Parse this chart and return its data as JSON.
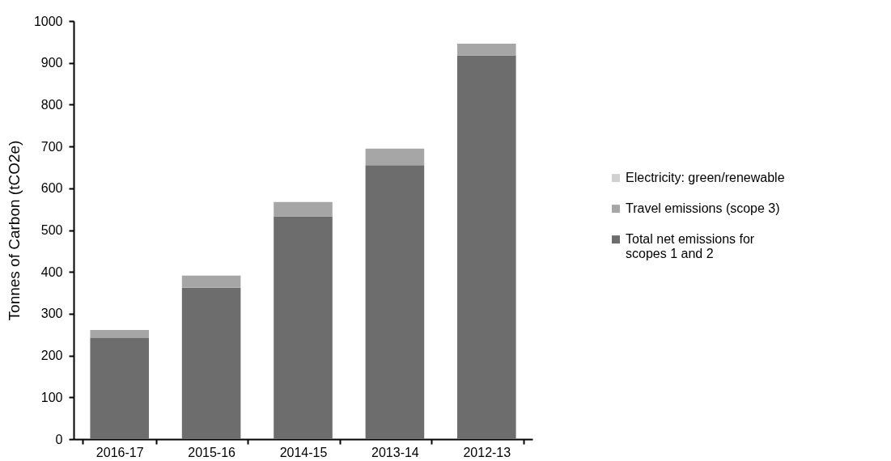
{
  "chart_data": {
    "type": "bar",
    "stacked": true,
    "ylabel": "Tonnes of Carbon (tCO2e)",
    "categories": [
      "2016-17",
      "2015-16",
      "2014-15",
      "2013-14",
      "2012-13"
    ],
    "series": [
      {
        "name": "Total net emissions for scopes 1 and 2",
        "color": "#6d6d6d",
        "values": [
          242,
          362,
          533,
          655,
          918
        ]
      },
      {
        "name": "Travel emissions (scope 3)",
        "color": "#a6a6a6",
        "values": [
          19,
          29,
          34,
          40,
          28
        ]
      },
      {
        "name": "Electricity: green/renewable",
        "color": "#d0d0d0",
        "values": [
          0,
          0,
          0,
          0,
          0
        ]
      }
    ],
    "ylim": [
      0,
      1000
    ],
    "yticks": [
      0,
      100,
      200,
      300,
      400,
      500,
      600,
      700,
      800,
      900,
      1000
    ],
    "grid": false,
    "legend": "right"
  }
}
